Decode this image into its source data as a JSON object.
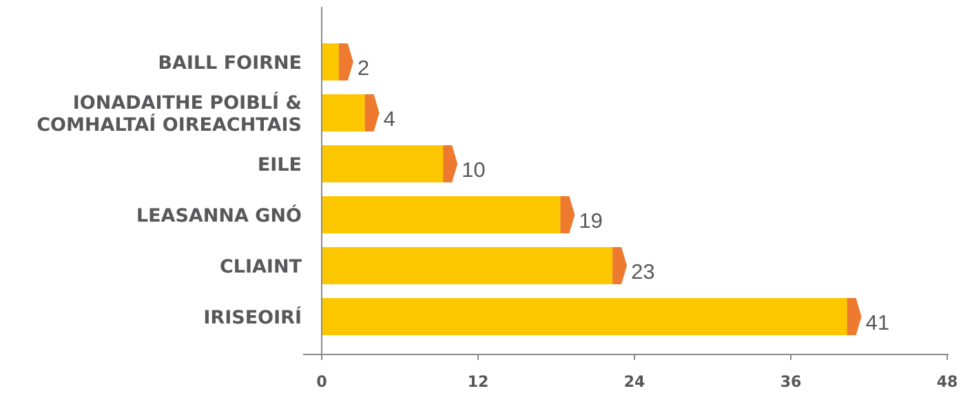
{
  "chart_data": {
    "type": "bar",
    "orientation": "horizontal",
    "categories": [
      "BAILL FOIRNE",
      "IONADAITHE POIBLÍ & COMHALTAÍ OIREACHTAIS",
      "EILE",
      "LEASANNA GNÓ",
      "CLIAINT",
      "IRISEOIRÍ"
    ],
    "category_lines": [
      [
        "BAILL FOIRNE"
      ],
      [
        "IONADAITHE POIBLÍ &",
        "COMHALTAÍ OIREACHTAIS"
      ],
      [
        "EILE"
      ],
      [
        "LEASANNA GNÓ"
      ],
      [
        "CLIAINT"
      ],
      [
        "IRISEOIRÍ"
      ]
    ],
    "values": [
      2,
      4,
      10,
      19,
      23,
      41
    ],
    "value_labels": [
      "2",
      "4",
      "10",
      "19",
      "23",
      "41"
    ],
    "title": "",
    "xlabel": "",
    "ylabel": "",
    "xlim": [
      0,
      48
    ],
    "xticks": [
      0,
      12,
      24,
      36,
      48
    ],
    "xtick_labels": [
      "0",
      "12",
      "24",
      "36",
      "48"
    ],
    "grid": false,
    "legend": "none",
    "colors": {
      "bar": "#fdc700",
      "bar_tip": "#ee7a2f",
      "axis": "#8a8a8a",
      "text": "#58585a"
    }
  }
}
